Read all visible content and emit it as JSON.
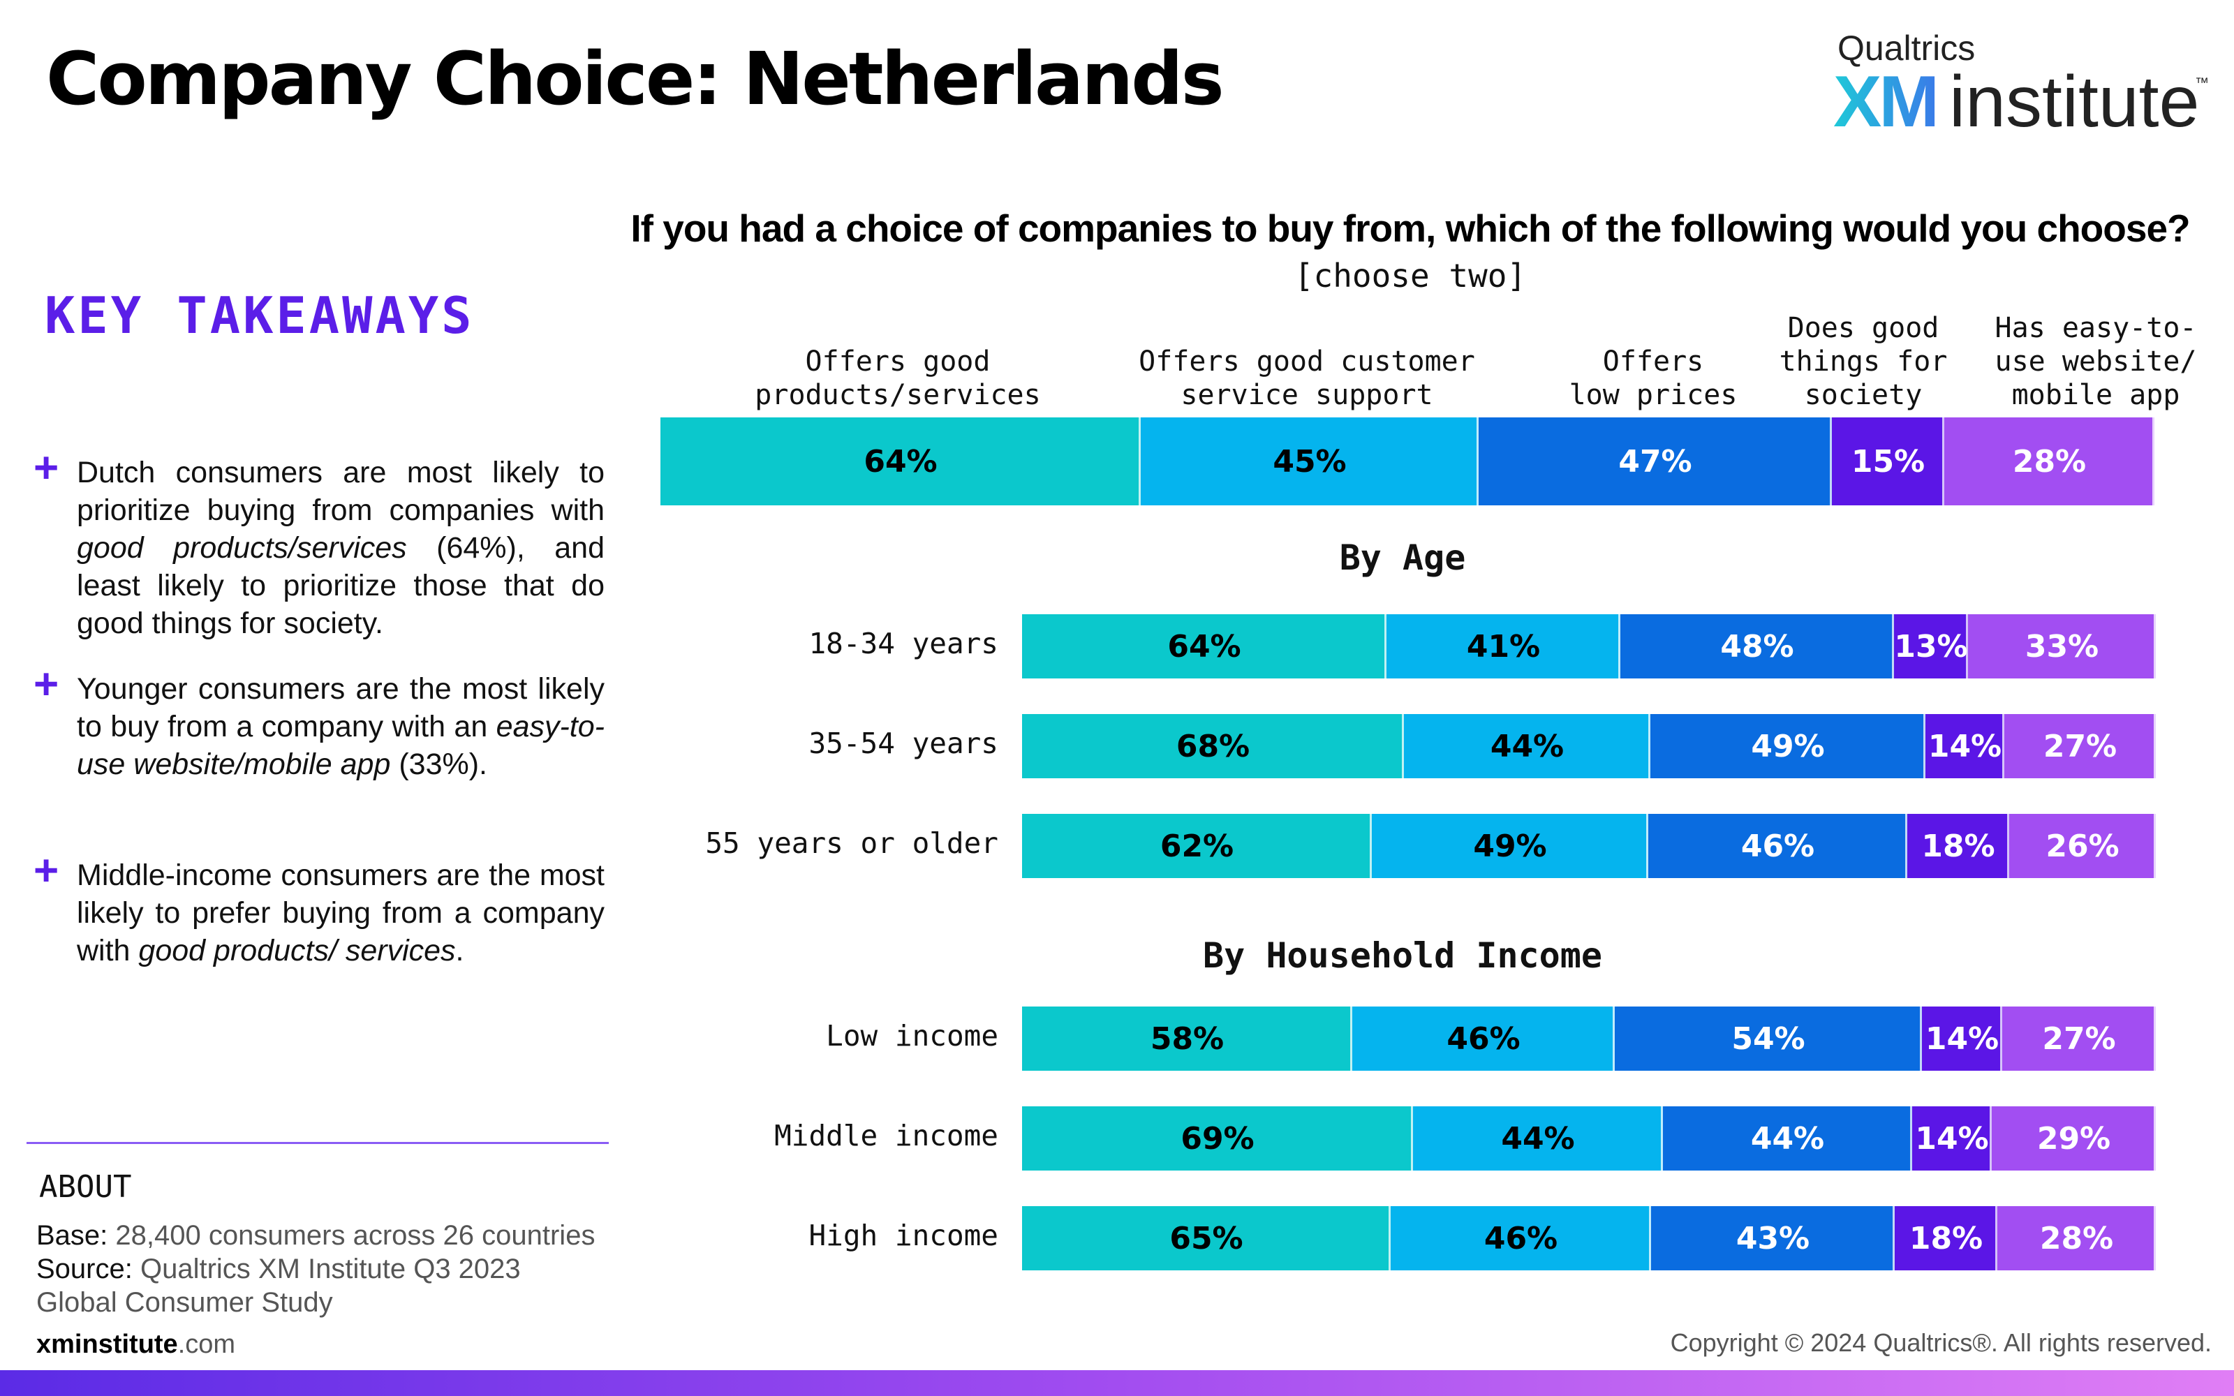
{
  "title": "Company Choice: Netherlands",
  "logo": {
    "brand": "Qualtrics",
    "mark": "XM",
    "word": "institute",
    "tm": "™"
  },
  "key_takeaways": {
    "heading": "KEY TAKEAWAYS",
    "items": [
      {
        "pre": "Dutch consumers are most likely to prioritize buying from companies with ",
        "em": "good products/services",
        "post": " (64%), and least likely to prioritize those that do good things for society."
      },
      {
        "pre": "Younger consumers are the most likely to buy from a company with an ",
        "em": "easy-to-use website/mobile app",
        "post": " (33%)."
      },
      {
        "pre": "Middle-income consumers are the most likely to prefer buying from a company with ",
        "em": "good products/ services",
        "post": "."
      }
    ]
  },
  "about": {
    "label": "ABOUT",
    "base_label": "Base:",
    "base_value": " 28,400 consumers across 26 countries",
    "source_label": "Source:",
    "source_value": " Qualtrics XM Institute Q3 2023 Global Consumer Study"
  },
  "footer": {
    "site_bold": "xminstitute",
    "site_rest": ".com",
    "copyright": "Copyright © 2024 Qualtrics®. All rights reserved."
  },
  "colors": {
    "accent": "#5b1ee8",
    "series": [
      "#0bc8cc",
      "#05b4ee",
      "#0a6ce0",
      "#5b16e6",
      "#a24ef2"
    ],
    "text_on_series": [
      "#000000",
      "#000000",
      "#ffffff",
      "#ffffff",
      "#ffffff"
    ]
  },
  "chart_data": {
    "type": "bar",
    "stacked": true,
    "orientation": "horizontal",
    "title": "If you had a choice of companies to buy from, which of the following would you choose?",
    "subtitle": "[choose two]",
    "series_names": [
      "Offers good\nproducts/services",
      "Offers good customer\nservice support",
      "Offers\nlow prices",
      "Does good\nthings for\nsociety",
      "Has easy-to-\nuse website/\nmobile app"
    ],
    "overall": {
      "values": [
        64,
        45,
        47,
        15,
        28
      ],
      "labels": [
        "64%",
        "45%",
        "47%",
        "15%",
        "28%"
      ]
    },
    "groups": [
      {
        "heading": "By Age",
        "rows": [
          {
            "label": "18-34 years",
            "values": [
              64,
              41,
              48,
              13,
              33
            ],
            "labels": [
              "64%",
              "41%",
              "48%",
              "13%",
              "33%"
            ]
          },
          {
            "label": "35-54 years",
            "values": [
              68,
              44,
              49,
              14,
              27
            ],
            "labels": [
              "68%",
              "44%",
              "49%",
              "14%",
              "27%"
            ]
          },
          {
            "label": "55 years or older",
            "values": [
              62,
              49,
              46,
              18,
              26
            ],
            "labels": [
              "62%",
              "49%",
              "46%",
              "18%",
              "26%"
            ]
          }
        ]
      },
      {
        "heading": "By Household Income",
        "rows": [
          {
            "label": "Low income",
            "values": [
              58,
              46,
              54,
              14,
              27
            ],
            "labels": [
              "58%",
              "46%",
              "54%",
              "14%",
              "27%"
            ]
          },
          {
            "label": "Middle income",
            "values": [
              69,
              44,
              44,
              14,
              29
            ],
            "labels": [
              "69%",
              "44%",
              "44%",
              "14%",
              "29%"
            ]
          },
          {
            "label": "High income",
            "values": [
              65,
              46,
              43,
              18,
              28
            ],
            "labels": [
              "65%",
              "46%",
              "43%",
              "18%",
              "28%"
            ]
          }
        ]
      }
    ]
  }
}
